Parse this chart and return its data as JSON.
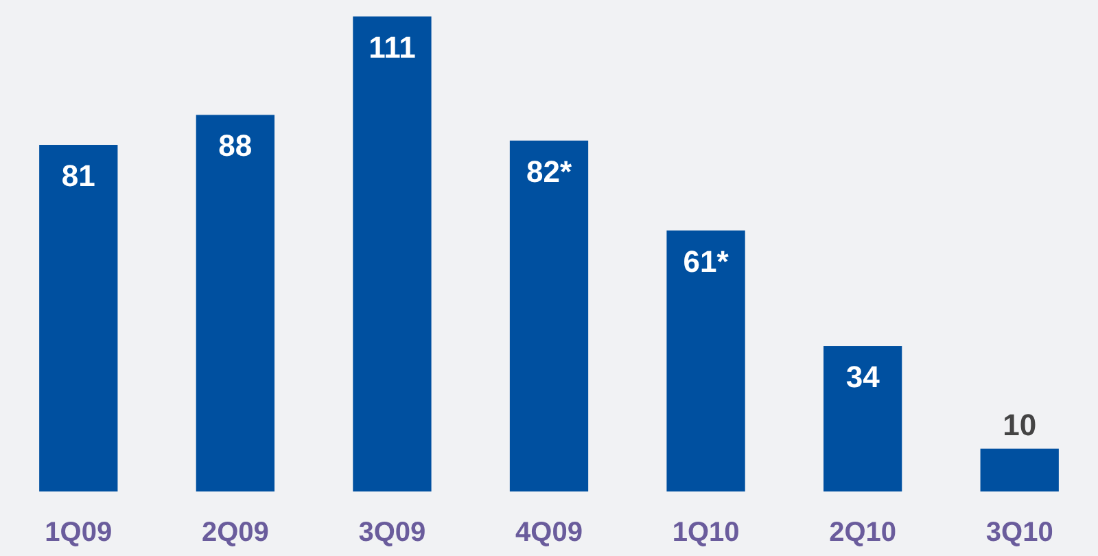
{
  "chart_data": {
    "type": "bar",
    "categories": [
      "1Q09",
      "2Q09",
      "3Q09",
      "4Q09",
      "1Q10",
      "2Q10",
      "3Q10"
    ],
    "values": [
      81,
      88,
      111,
      82,
      61,
      34,
      10
    ],
    "value_labels": [
      "81",
      "88",
      "111",
      "82*",
      "61*",
      "34",
      "10"
    ],
    "color": "#0050a0"
  }
}
